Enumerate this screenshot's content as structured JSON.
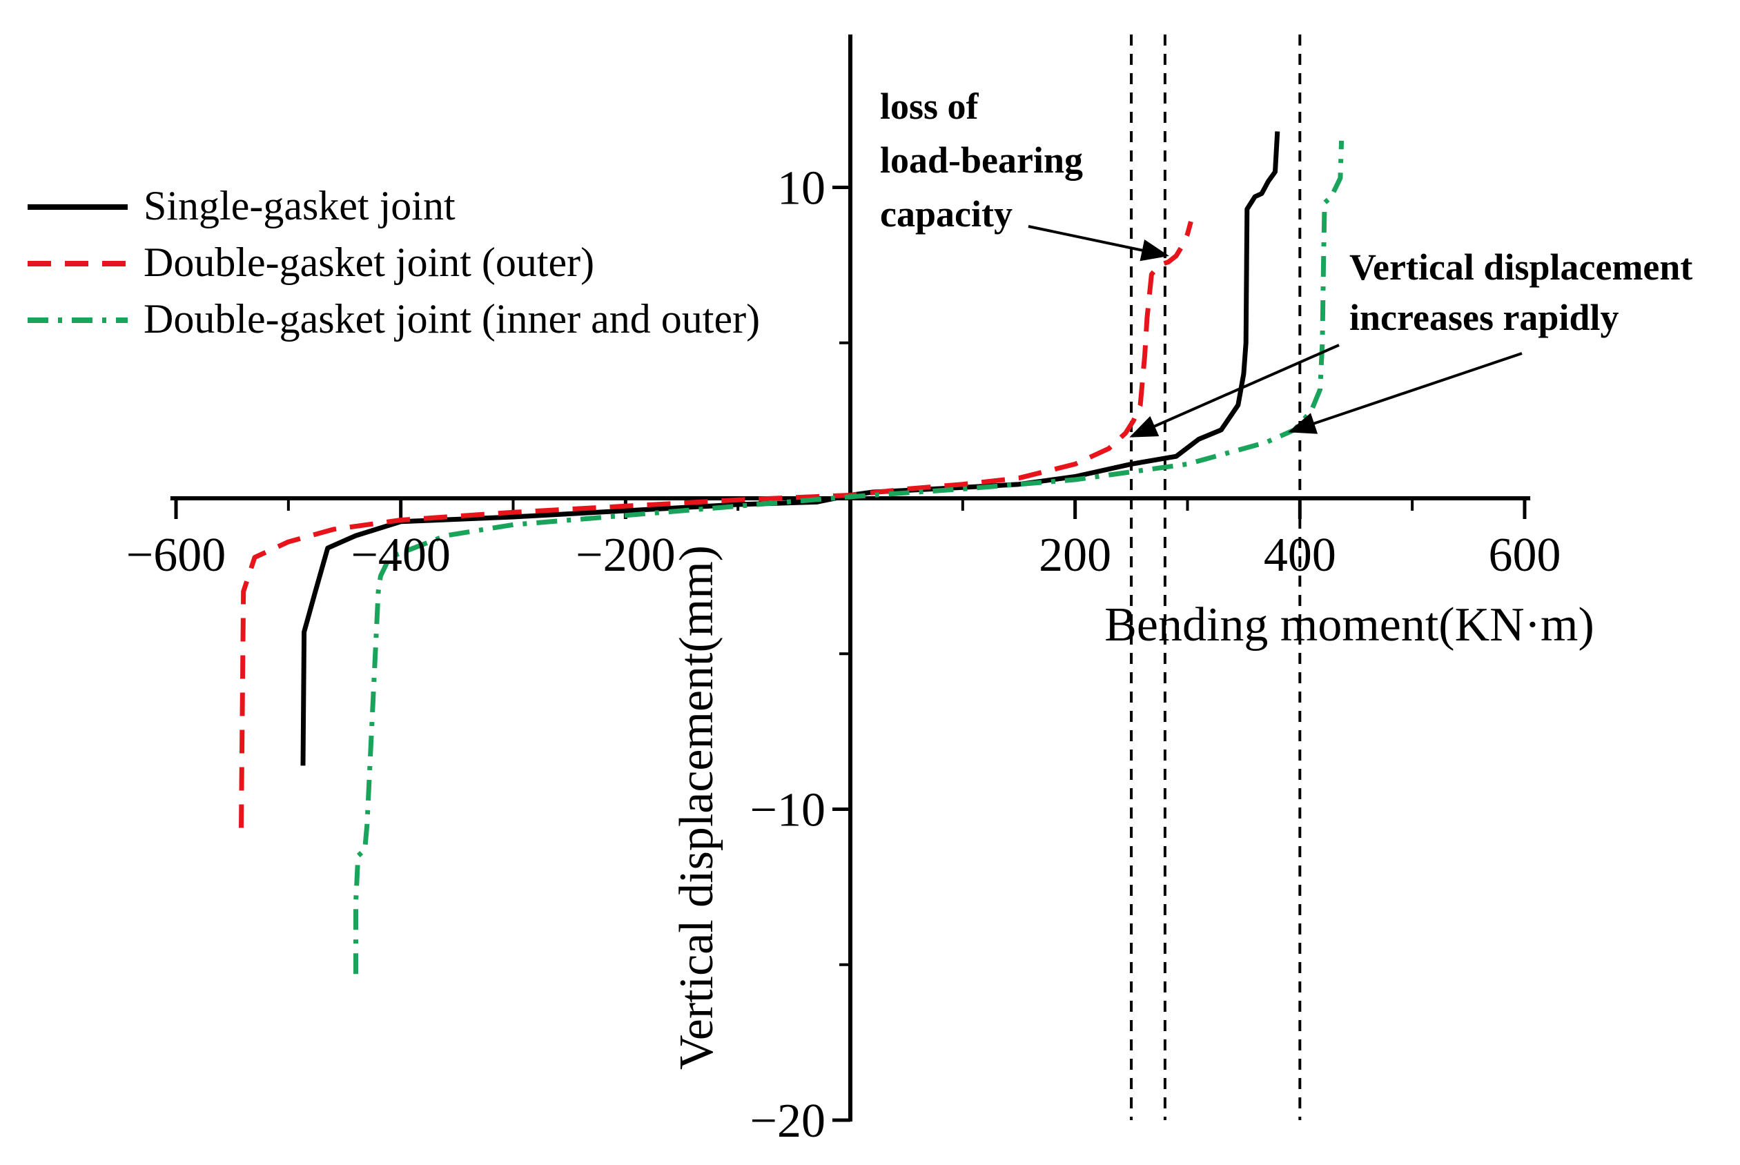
{
  "chart_data": {
    "type": "line",
    "xlabel": "Bending moment(KN·m)",
    "ylabel": "Vertical displacement(mm)",
    "xlim": [
      -605,
      605
    ],
    "ylim": [
      -20,
      15
    ],
    "x_ticks": [
      -600,
      -400,
      -200,
      200,
      400,
      600
    ],
    "y_ticks": [
      -20,
      -10,
      10
    ],
    "x_tick_labels": [
      "−600",
      "−400",
      "−200",
      "200",
      "400",
      "600"
    ],
    "y_tick_labels": [
      "−20",
      "−10",
      "10"
    ],
    "legend_position": "top-left",
    "reference_lines_x": [
      250,
      280,
      400
    ],
    "series": [
      {
        "name": "Single-gasket joint",
        "color": "#000000",
        "style": "solid",
        "points": [
          [
            -487,
            -8.6
          ],
          [
            -486,
            -4.3
          ],
          [
            -476,
            -3.0
          ],
          [
            -465,
            -1.6
          ],
          [
            -440,
            -1.2
          ],
          [
            -400,
            -0.75
          ],
          [
            -300,
            -0.6
          ],
          [
            -200,
            -0.4
          ],
          [
            -100,
            -0.2
          ],
          [
            -30,
            -0.12
          ],
          [
            0,
            0.1
          ],
          [
            20,
            0.2
          ],
          [
            100,
            0.35
          ],
          [
            150,
            0.45
          ],
          [
            200,
            0.7
          ],
          [
            250,
            1.1
          ],
          [
            290,
            1.35
          ],
          [
            310,
            1.9
          ],
          [
            330,
            2.2
          ],
          [
            345,
            3.0
          ],
          [
            350,
            4.0
          ],
          [
            352,
            5.0
          ],
          [
            353,
            9.3
          ],
          [
            360,
            9.7
          ],
          [
            366,
            9.8
          ],
          [
            372,
            10.2
          ],
          [
            378,
            10.5
          ],
          [
            380,
            11.8
          ]
        ]
      },
      {
        "name": "Double-gasket joint (outer)",
        "color": "#e8141c",
        "style": "dashed",
        "points": [
          [
            -542,
            -10.6
          ],
          [
            -540,
            -3.0
          ],
          [
            -530,
            -1.9
          ],
          [
            -500,
            -1.4
          ],
          [
            -460,
            -1.0
          ],
          [
            -400,
            -0.7
          ],
          [
            -300,
            -0.45
          ],
          [
            -200,
            -0.25
          ],
          [
            -100,
            -0.05
          ],
          [
            0,
            0.1
          ],
          [
            50,
            0.3
          ],
          [
            100,
            0.45
          ],
          [
            150,
            0.65
          ],
          [
            200,
            1.1
          ],
          [
            230,
            1.6
          ],
          [
            245,
            2.1
          ],
          [
            252,
            2.5
          ],
          [
            258,
            3.0
          ],
          [
            262,
            4.6
          ],
          [
            264,
            5.8
          ],
          [
            268,
            7.2
          ],
          [
            275,
            7.5
          ],
          [
            283,
            7.6
          ],
          [
            290,
            7.8
          ],
          [
            295,
            8.1
          ],
          [
            300,
            8.5
          ],
          [
            303,
            8.9
          ]
        ]
      },
      {
        "name": "Double-gasket joint (inner and outer)",
        "color": "#1aa35a",
        "style": "dashdot",
        "points": [
          [
            -440,
            -15.3
          ],
          [
            -440,
            -13.0
          ],
          [
            -438,
            -11.5
          ],
          [
            -432,
            -11.3
          ],
          [
            -430,
            -10.5
          ],
          [
            -420,
            -3.0
          ],
          [
            -418,
            -2.5
          ],
          [
            -410,
            -1.9
          ],
          [
            -360,
            -1.2
          ],
          [
            -300,
            -0.85
          ],
          [
            -200,
            -0.55
          ],
          [
            -100,
            -0.25
          ],
          [
            0,
            0.05
          ],
          [
            100,
            0.3
          ],
          [
            200,
            0.6
          ],
          [
            300,
            1.1
          ],
          [
            330,
            1.4
          ],
          [
            370,
            1.8
          ],
          [
            395,
            2.2
          ],
          [
            410,
            2.8
          ],
          [
            418,
            3.5
          ],
          [
            420,
            5.0
          ],
          [
            421,
            7.5
          ],
          [
            422,
            9.5
          ],
          [
            428,
            9.7
          ],
          [
            432,
            10.0
          ],
          [
            436,
            10.3
          ],
          [
            437,
            11.5
          ]
        ]
      }
    ],
    "annotations": [
      {
        "lines": [
          "loss of",
          "load-bearing",
          "capacity"
        ]
      },
      {
        "lines": [
          "Vertical displacement",
          "increases rapidly"
        ]
      }
    ]
  }
}
